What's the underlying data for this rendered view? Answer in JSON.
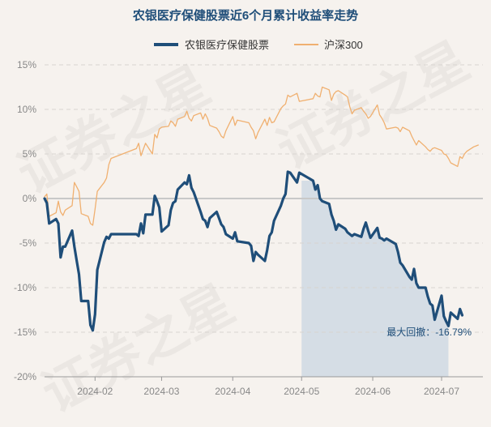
{
  "chart_data": {
    "type": "line",
    "title": "农银医疗保健股票近6个月累计收益率走势",
    "xlabel": "",
    "ylabel": "",
    "ylim": [
      -20,
      15
    ],
    "yticks": [
      "15%",
      "10%",
      "5%",
      "0%",
      "-5%",
      "-10%",
      "-15%",
      "-20%"
    ],
    "ytick_values": [
      15,
      10,
      5,
      0,
      -5,
      -10,
      -15,
      -20
    ],
    "xticks": [
      "2024-02",
      "2024-03",
      "2024-04",
      "2024-05",
      "2024-06",
      "2024-07"
    ],
    "xtick_dates": [
      "2024-02-01",
      "2024-03-01",
      "2024-04-01",
      "2024-05-01",
      "2024-06-01",
      "2024-07-01"
    ],
    "x_range": [
      "2024-01-10",
      "2024-07-19"
    ],
    "grid": "horizontal dashed",
    "legend_position": "top-center",
    "series": [
      {
        "name": "农银医疗保健股票",
        "color": "#1f4e79",
        "points": [
          [
            "2024-01-10",
            0
          ],
          [
            "2024-01-11",
            -0.5
          ],
          [
            "2024-01-12",
            -2.8
          ],
          [
            "2024-01-15",
            -2.3
          ],
          [
            "2024-01-16",
            -2.8
          ],
          [
            "2024-01-17",
            -6.6
          ],
          [
            "2024-01-18",
            -5.4
          ],
          [
            "2024-01-19",
            -5.4
          ],
          [
            "2024-01-22",
            -3.6
          ],
          [
            "2024-01-23",
            -5.4
          ],
          [
            "2024-01-24",
            -7.0
          ],
          [
            "2024-01-25",
            -8.5
          ],
          [
            "2024-01-26",
            -11.5
          ],
          [
            "2024-01-29",
            -11.5
          ],
          [
            "2024-01-30",
            -14.2
          ],
          [
            "2024-01-31",
            -14.8
          ],
          [
            "2024-02-01",
            -13.0
          ],
          [
            "2024-02-02",
            -8.0
          ],
          [
            "2024-02-05",
            -4.9
          ],
          [
            "2024-02-06",
            -4.3
          ],
          [
            "2024-02-07",
            -4.5
          ],
          [
            "2024-02-08",
            -4.0
          ],
          [
            "2024-02-19",
            -4.0
          ],
          [
            "2024-02-20",
            -4.2
          ],
          [
            "2024-02-21",
            -2.8
          ],
          [
            "2024-02-22",
            -3.9
          ],
          [
            "2024-02-23",
            -1.8
          ],
          [
            "2024-02-26",
            -1.8
          ],
          [
            "2024-02-27",
            0.3
          ],
          [
            "2024-02-28",
            -0.3
          ],
          [
            "2024-02-29",
            -1.0
          ],
          [
            "2024-03-01",
            -3.7
          ],
          [
            "2024-03-04",
            -3.0
          ],
          [
            "2024-03-05",
            -1.3
          ],
          [
            "2024-03-06",
            -0.5
          ],
          [
            "2024-03-07",
            -0.3
          ],
          [
            "2024-03-08",
            1.0
          ],
          [
            "2024-03-11",
            1.8
          ],
          [
            "2024-03-12",
            1.6
          ],
          [
            "2024-03-13",
            2.6
          ],
          [
            "2024-03-14",
            1.2
          ],
          [
            "2024-03-15",
            0.7
          ],
          [
            "2024-03-18",
            -1.5
          ],
          [
            "2024-03-19",
            -2.3
          ],
          [
            "2024-03-20",
            -2.5
          ],
          [
            "2024-03-21",
            -3.2
          ],
          [
            "2024-03-22",
            -2.2
          ],
          [
            "2024-03-25",
            -1.5
          ],
          [
            "2024-03-26",
            -2.2
          ],
          [
            "2024-03-27",
            -2.9
          ],
          [
            "2024-03-28",
            -3.2
          ],
          [
            "2024-03-29",
            -4.0
          ],
          [
            "2024-04-01",
            -4.5
          ],
          [
            "2024-04-02",
            -3.8
          ],
          [
            "2024-04-03",
            -4.8
          ],
          [
            "2024-04-08",
            -5.0
          ],
          [
            "2024-04-09",
            -5.3
          ],
          [
            "2024-04-10",
            -7.0
          ],
          [
            "2024-04-11",
            -6.0
          ],
          [
            "2024-04-12",
            -6.3
          ],
          [
            "2024-04-15",
            -7.0
          ],
          [
            "2024-04-16",
            -5.8
          ],
          [
            "2024-04-17",
            -4.2
          ],
          [
            "2024-04-18",
            -3.8
          ],
          [
            "2024-04-19",
            -2.5
          ],
          [
            "2024-04-22",
            -0.8
          ],
          [
            "2024-04-23",
            0.0
          ],
          [
            "2024-04-24",
            0.5
          ],
          [
            "2024-04-25",
            3.0
          ],
          [
            "2024-04-26",
            2.9
          ],
          [
            "2024-04-29",
            1.8
          ],
          [
            "2024-04-30",
            2.9
          ],
          [
            "2024-05-06",
            2.0
          ],
          [
            "2024-05-07",
            1.0
          ],
          [
            "2024-05-08",
            1.5
          ],
          [
            "2024-05-09",
            0.0
          ],
          [
            "2024-05-10",
            -0.3
          ],
          [
            "2024-05-13",
            -0.6
          ],
          [
            "2024-05-14",
            -1.8
          ],
          [
            "2024-05-15",
            -2.5
          ],
          [
            "2024-05-16",
            -3.5
          ],
          [
            "2024-05-17",
            -2.9
          ],
          [
            "2024-05-20",
            -3.4
          ],
          [
            "2024-05-21",
            -3.8
          ],
          [
            "2024-05-22",
            -4.0
          ],
          [
            "2024-05-23",
            -4.2
          ],
          [
            "2024-05-24",
            -4.0
          ],
          [
            "2024-05-27",
            -4.3
          ],
          [
            "2024-05-28",
            -3.4
          ],
          [
            "2024-05-29",
            -2.7
          ],
          [
            "2024-05-30",
            -3.6
          ],
          [
            "2024-05-31",
            -4.4
          ],
          [
            "2024-06-03",
            -3.3
          ],
          [
            "2024-06-04",
            -4.4
          ],
          [
            "2024-06-05",
            -4.5
          ],
          [
            "2024-06-06",
            -4.7
          ],
          [
            "2024-06-07",
            -4.5
          ],
          [
            "2024-06-11",
            -5.1
          ],
          [
            "2024-06-12",
            -6.0
          ],
          [
            "2024-06-13",
            -7.2
          ],
          [
            "2024-06-14",
            -7.5
          ],
          [
            "2024-06-17",
            -8.8
          ],
          [
            "2024-06-18",
            -9.1
          ],
          [
            "2024-06-19",
            -7.9
          ],
          [
            "2024-06-20",
            -9.5
          ],
          [
            "2024-06-21",
            -10.0
          ],
          [
            "2024-06-24",
            -10.0
          ],
          [
            "2024-06-25",
            -11.0
          ],
          [
            "2024-06-26",
            -11.8
          ],
          [
            "2024-06-27",
            -12.0
          ],
          [
            "2024-06-28",
            -13.6
          ],
          [
            "2024-07-01",
            -10.9
          ],
          [
            "2024-07-02",
            -13.2
          ],
          [
            "2024-07-03",
            -13.8
          ],
          [
            "2024-07-04",
            -14.3
          ],
          [
            "2024-07-05",
            -12.8
          ],
          [
            "2024-07-08",
            -13.5
          ],
          [
            "2024-07-09",
            -12.4
          ],
          [
            "2024-07-10",
            -13.1
          ]
        ]
      },
      {
        "name": "沪深300",
        "color": "#f0b070",
        "points": [
          [
            "2024-01-10",
            0.2
          ],
          [
            "2024-01-11",
            0.5
          ],
          [
            "2024-01-12",
            -2.0
          ],
          [
            "2024-01-15",
            -1.6
          ],
          [
            "2024-01-16",
            -0.3
          ],
          [
            "2024-01-17",
            -1.5
          ],
          [
            "2024-01-18",
            -1.9
          ],
          [
            "2024-01-19",
            -1.3
          ],
          [
            "2024-01-22",
            -0.8
          ],
          [
            "2024-01-23",
            1.8
          ],
          [
            "2024-01-24",
            1.3
          ],
          [
            "2024-01-25",
            0.8
          ],
          [
            "2024-01-26",
            -1.7
          ],
          [
            "2024-01-29",
            -2.0
          ],
          [
            "2024-01-30",
            -2.8
          ],
          [
            "2024-01-31",
            -3.0
          ],
          [
            "2024-02-01",
            -1.2
          ],
          [
            "2024-02-02",
            0.8
          ],
          [
            "2024-02-05",
            1.8
          ],
          [
            "2024-02-06",
            2.3
          ],
          [
            "2024-02-07",
            3.8
          ],
          [
            "2024-02-08",
            4.5
          ],
          [
            "2024-02-19",
            5.6
          ],
          [
            "2024-02-20",
            6.2
          ],
          [
            "2024-02-21",
            4.8
          ],
          [
            "2024-02-22",
            5.5
          ],
          [
            "2024-02-23",
            6.2
          ],
          [
            "2024-02-26",
            5.0
          ],
          [
            "2024-02-27",
            7.2
          ],
          [
            "2024-02-28",
            6.8
          ],
          [
            "2024-02-29",
            7.8
          ],
          [
            "2024-03-01",
            8.0
          ],
          [
            "2024-03-04",
            8.1
          ],
          [
            "2024-03-05",
            8.7
          ],
          [
            "2024-03-06",
            8.5
          ],
          [
            "2024-03-07",
            8.1
          ],
          [
            "2024-03-08",
            8.9
          ],
          [
            "2024-03-11",
            9.2
          ],
          [
            "2024-03-12",
            9.8
          ],
          [
            "2024-03-13",
            9.0
          ],
          [
            "2024-03-14",
            8.7
          ],
          [
            "2024-03-15",
            9.3
          ],
          [
            "2024-03-18",
            9.6
          ],
          [
            "2024-03-19",
            8.9
          ],
          [
            "2024-03-20",
            9.5
          ],
          [
            "2024-03-21",
            9.0
          ],
          [
            "2024-03-22",
            8.2
          ],
          [
            "2024-03-25",
            7.9
          ],
          [
            "2024-03-26",
            7.5
          ],
          [
            "2024-03-27",
            7.0
          ],
          [
            "2024-03-28",
            6.8
          ],
          [
            "2024-03-29",
            7.6
          ],
          [
            "2024-04-01",
            9.2
          ],
          [
            "2024-04-02",
            8.2
          ],
          [
            "2024-04-03",
            8.8
          ],
          [
            "2024-04-08",
            8.5
          ],
          [
            "2024-04-09",
            8.0
          ],
          [
            "2024-04-10",
            7.6
          ],
          [
            "2024-04-11",
            6.7
          ],
          [
            "2024-04-12",
            7.4
          ],
          [
            "2024-04-15",
            8.9
          ],
          [
            "2024-04-16",
            8.2
          ],
          [
            "2024-04-17",
            9.1
          ],
          [
            "2024-04-18",
            8.5
          ],
          [
            "2024-04-19",
            8.6
          ],
          [
            "2024-04-22",
            10.1
          ],
          [
            "2024-04-23",
            10.4
          ],
          [
            "2024-04-24",
            10.6
          ],
          [
            "2024-04-25",
            11.6
          ],
          [
            "2024-04-26",
            11.4
          ],
          [
            "2024-04-29",
            11.8
          ],
          [
            "2024-04-30",
            10.9
          ],
          [
            "2024-05-06",
            11.2
          ],
          [
            "2024-05-07",
            11.8
          ],
          [
            "2024-05-08",
            11.5
          ],
          [
            "2024-05-09",
            11.4
          ],
          [
            "2024-05-10",
            12.5
          ],
          [
            "2024-05-13",
            12.2
          ],
          [
            "2024-05-14",
            11.0
          ],
          [
            "2024-05-15",
            11.7
          ],
          [
            "2024-05-16",
            12.0
          ],
          [
            "2024-05-17",
            12.1
          ],
          [
            "2024-05-20",
            11.6
          ],
          [
            "2024-05-21",
            11.4
          ],
          [
            "2024-05-22",
            10.3
          ],
          [
            "2024-05-23",
            9.5
          ],
          [
            "2024-05-24",
            9.9
          ],
          [
            "2024-05-27",
            10.2
          ],
          [
            "2024-05-28",
            9.8
          ],
          [
            "2024-05-29",
            9.5
          ],
          [
            "2024-05-30",
            9.0
          ],
          [
            "2024-05-31",
            9.2
          ],
          [
            "2024-06-03",
            10.5
          ],
          [
            "2024-06-04",
            9.4
          ],
          [
            "2024-06-05",
            9.0
          ],
          [
            "2024-06-06",
            8.5
          ],
          [
            "2024-06-07",
            7.8
          ],
          [
            "2024-06-11",
            8.0
          ],
          [
            "2024-06-12",
            7.9
          ],
          [
            "2024-06-13",
            7.5
          ],
          [
            "2024-06-14",
            8.0
          ],
          [
            "2024-06-17",
            7.6
          ],
          [
            "2024-06-18",
            7.0
          ],
          [
            "2024-06-19",
            6.5
          ],
          [
            "2024-06-20",
            6.0
          ],
          [
            "2024-06-21",
            6.5
          ],
          [
            "2024-06-24",
            5.8
          ],
          [
            "2024-06-25",
            5.5
          ],
          [
            "2024-06-26",
            5.3
          ],
          [
            "2024-06-27",
            5.6
          ],
          [
            "2024-06-28",
            5.7
          ],
          [
            "2024-07-01",
            5.4
          ],
          [
            "2024-07-02",
            5.0
          ],
          [
            "2024-07-03",
            4.9
          ],
          [
            "2024-07-04",
            4.5
          ],
          [
            "2024-07-05",
            4.0
          ],
          [
            "2024-07-08",
            3.6
          ],
          [
            "2024-07-09",
            4.7
          ],
          [
            "2024-07-10",
            4.5
          ],
          [
            "2024-07-11",
            5.0
          ],
          [
            "2024-07-12",
            5.3
          ],
          [
            "2024-07-15",
            5.8
          ],
          [
            "2024-07-16",
            5.9
          ],
          [
            "2024-07-17",
            6.0
          ]
        ]
      }
    ],
    "drawdown": {
      "label": "最大回撤：-16.79%",
      "start_date": "2024-05-01",
      "end_date": "2024-07-04",
      "fill_color": "#c9d5e1"
    },
    "watermark": "证券之星"
  }
}
